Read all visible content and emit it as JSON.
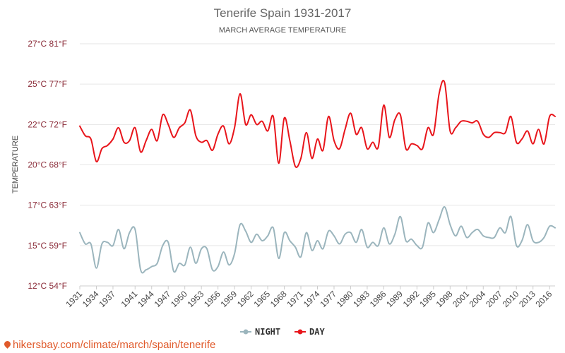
{
  "chart_data": {
    "type": "line",
    "title": "Tenerife Spain 1931-2017",
    "subtitle": "MARCH AVERAGE TEMPERATURE",
    "ylabel": "TEMPERATURE",
    "xlabel": "",
    "ylim": [
      12,
      27
    ],
    "y_ticks": [
      {
        "value": 12,
        "label": "12°C 54°F"
      },
      {
        "value": 14.5,
        "label": "15°C 59°F"
      },
      {
        "value": 17,
        "label": "17°C 63°F"
      },
      {
        "value": 19.5,
        "label": "20°C 68°F"
      },
      {
        "value": 22,
        "label": "22°C 72°F"
      },
      {
        "value": 24.5,
        "label": "25°C 77°F"
      },
      {
        "value": 27,
        "label": "27°C 81°F"
      }
    ],
    "x": [
      1931,
      1932,
      1933,
      1934,
      1935,
      1936,
      1937,
      1938,
      1939,
      1940,
      1941,
      1942,
      1943,
      1944,
      1945,
      1946,
      1947,
      1948,
      1949,
      1950,
      1951,
      1952,
      1953,
      1954,
      1955,
      1956,
      1957,
      1958,
      1959,
      1960,
      1961,
      1962,
      1963,
      1964,
      1965,
      1966,
      1967,
      1968,
      1969,
      1970,
      1971,
      1972,
      1973,
      1974,
      1975,
      1976,
      1977,
      1978,
      1979,
      1980,
      1981,
      1982,
      1983,
      1984,
      1985,
      1986,
      1987,
      1988,
      1989,
      1990,
      1991,
      1992,
      1993,
      1994,
      1995,
      1996,
      1997,
      1998,
      1999,
      2000,
      2001,
      2002,
      2003,
      2004,
      2005,
      2006,
      2007,
      2008,
      2009,
      2010,
      2011,
      2012,
      2013,
      2014,
      2015,
      2016,
      2017
    ],
    "x_tick_labels": [
      "1931",
      "1934",
      "1937",
      "1941",
      "1944",
      "1947",
      "1950",
      "1953",
      "1956",
      "1959",
      "1962",
      "1965",
      "1968",
      "1971",
      "1974",
      "1977",
      "1980",
      "1983",
      "1986",
      "1989",
      "1992",
      "1995",
      "1998",
      "2001",
      "2004",
      "2007",
      "2010",
      "2013",
      "2016"
    ],
    "series": [
      {
        "name": "NIGHT",
        "color": "#9bb5bd",
        "values": [
          15.3,
          14.6,
          14.6,
          13.1,
          14.6,
          14.7,
          14.5,
          15.5,
          14.3,
          15.3,
          15.5,
          13.0,
          13.0,
          13.2,
          13.4,
          14.5,
          14.7,
          12.9,
          13.4,
          13.3,
          14.4,
          13.4,
          14.3,
          14.3,
          13.0,
          13.2,
          14.1,
          13.3,
          14.0,
          15.8,
          15.4,
          14.7,
          15.2,
          14.8,
          15.1,
          15.6,
          13.7,
          15.3,
          14.8,
          14.4,
          13.8,
          15.3,
          14.2,
          14.8,
          14.3,
          15.4,
          15.1,
          14.6,
          15.2,
          15.3,
          14.7,
          15.5,
          14.4,
          14.7,
          14.5,
          15.6,
          14.6,
          15.2,
          16.3,
          14.8,
          14.9,
          14.5,
          14.4,
          15.9,
          15.3,
          16.1,
          16.9,
          15.8,
          15.1,
          15.7,
          15.0,
          15.3,
          15.5,
          15.1,
          15.0,
          15.0,
          15.6,
          15.3,
          16.3,
          14.5,
          14.8,
          15.8,
          14.8,
          14.7,
          15.0,
          15.7,
          15.6
        ]
      },
      {
        "name": "DAY",
        "color": "#e8151b",
        "values": [
          21.9,
          21.3,
          21.1,
          19.7,
          20.5,
          20.7,
          21.1,
          21.8,
          20.9,
          21.0,
          21.8,
          20.3,
          21.0,
          21.7,
          21.0,
          22.6,
          22.0,
          21.2,
          21.8,
          22.1,
          22.9,
          21.3,
          20.9,
          21.0,
          20.4,
          21.4,
          21.9,
          20.8,
          21.8,
          23.9,
          22.0,
          22.6,
          22.0,
          22.2,
          21.6,
          22.5,
          19.6,
          22.4,
          21.0,
          19.4,
          19.9,
          21.5,
          19.9,
          21.1,
          20.4,
          22.5,
          21.0,
          20.5,
          21.7,
          22.7,
          21.4,
          21.8,
          20.5,
          20.9,
          20.6,
          23.2,
          21.2,
          22.3,
          22.6,
          20.5,
          20.8,
          20.7,
          20.5,
          21.8,
          21.4,
          23.9,
          24.6,
          21.6,
          21.8,
          22.2,
          22.2,
          22.1,
          22.2,
          21.4,
          21.2,
          21.5,
          21.5,
          21.5,
          22.5,
          20.9,
          21.1,
          21.6,
          20.8,
          21.7,
          20.8,
          22.5,
          22.5
        ]
      }
    ],
    "legend": [
      {
        "name": "NIGHT",
        "color": "#9bb5bd"
      },
      {
        "name": "DAY",
        "color": "#e8151b"
      }
    ]
  },
  "watermark": "hikersbay.com/climate/march/spain/tenerife"
}
